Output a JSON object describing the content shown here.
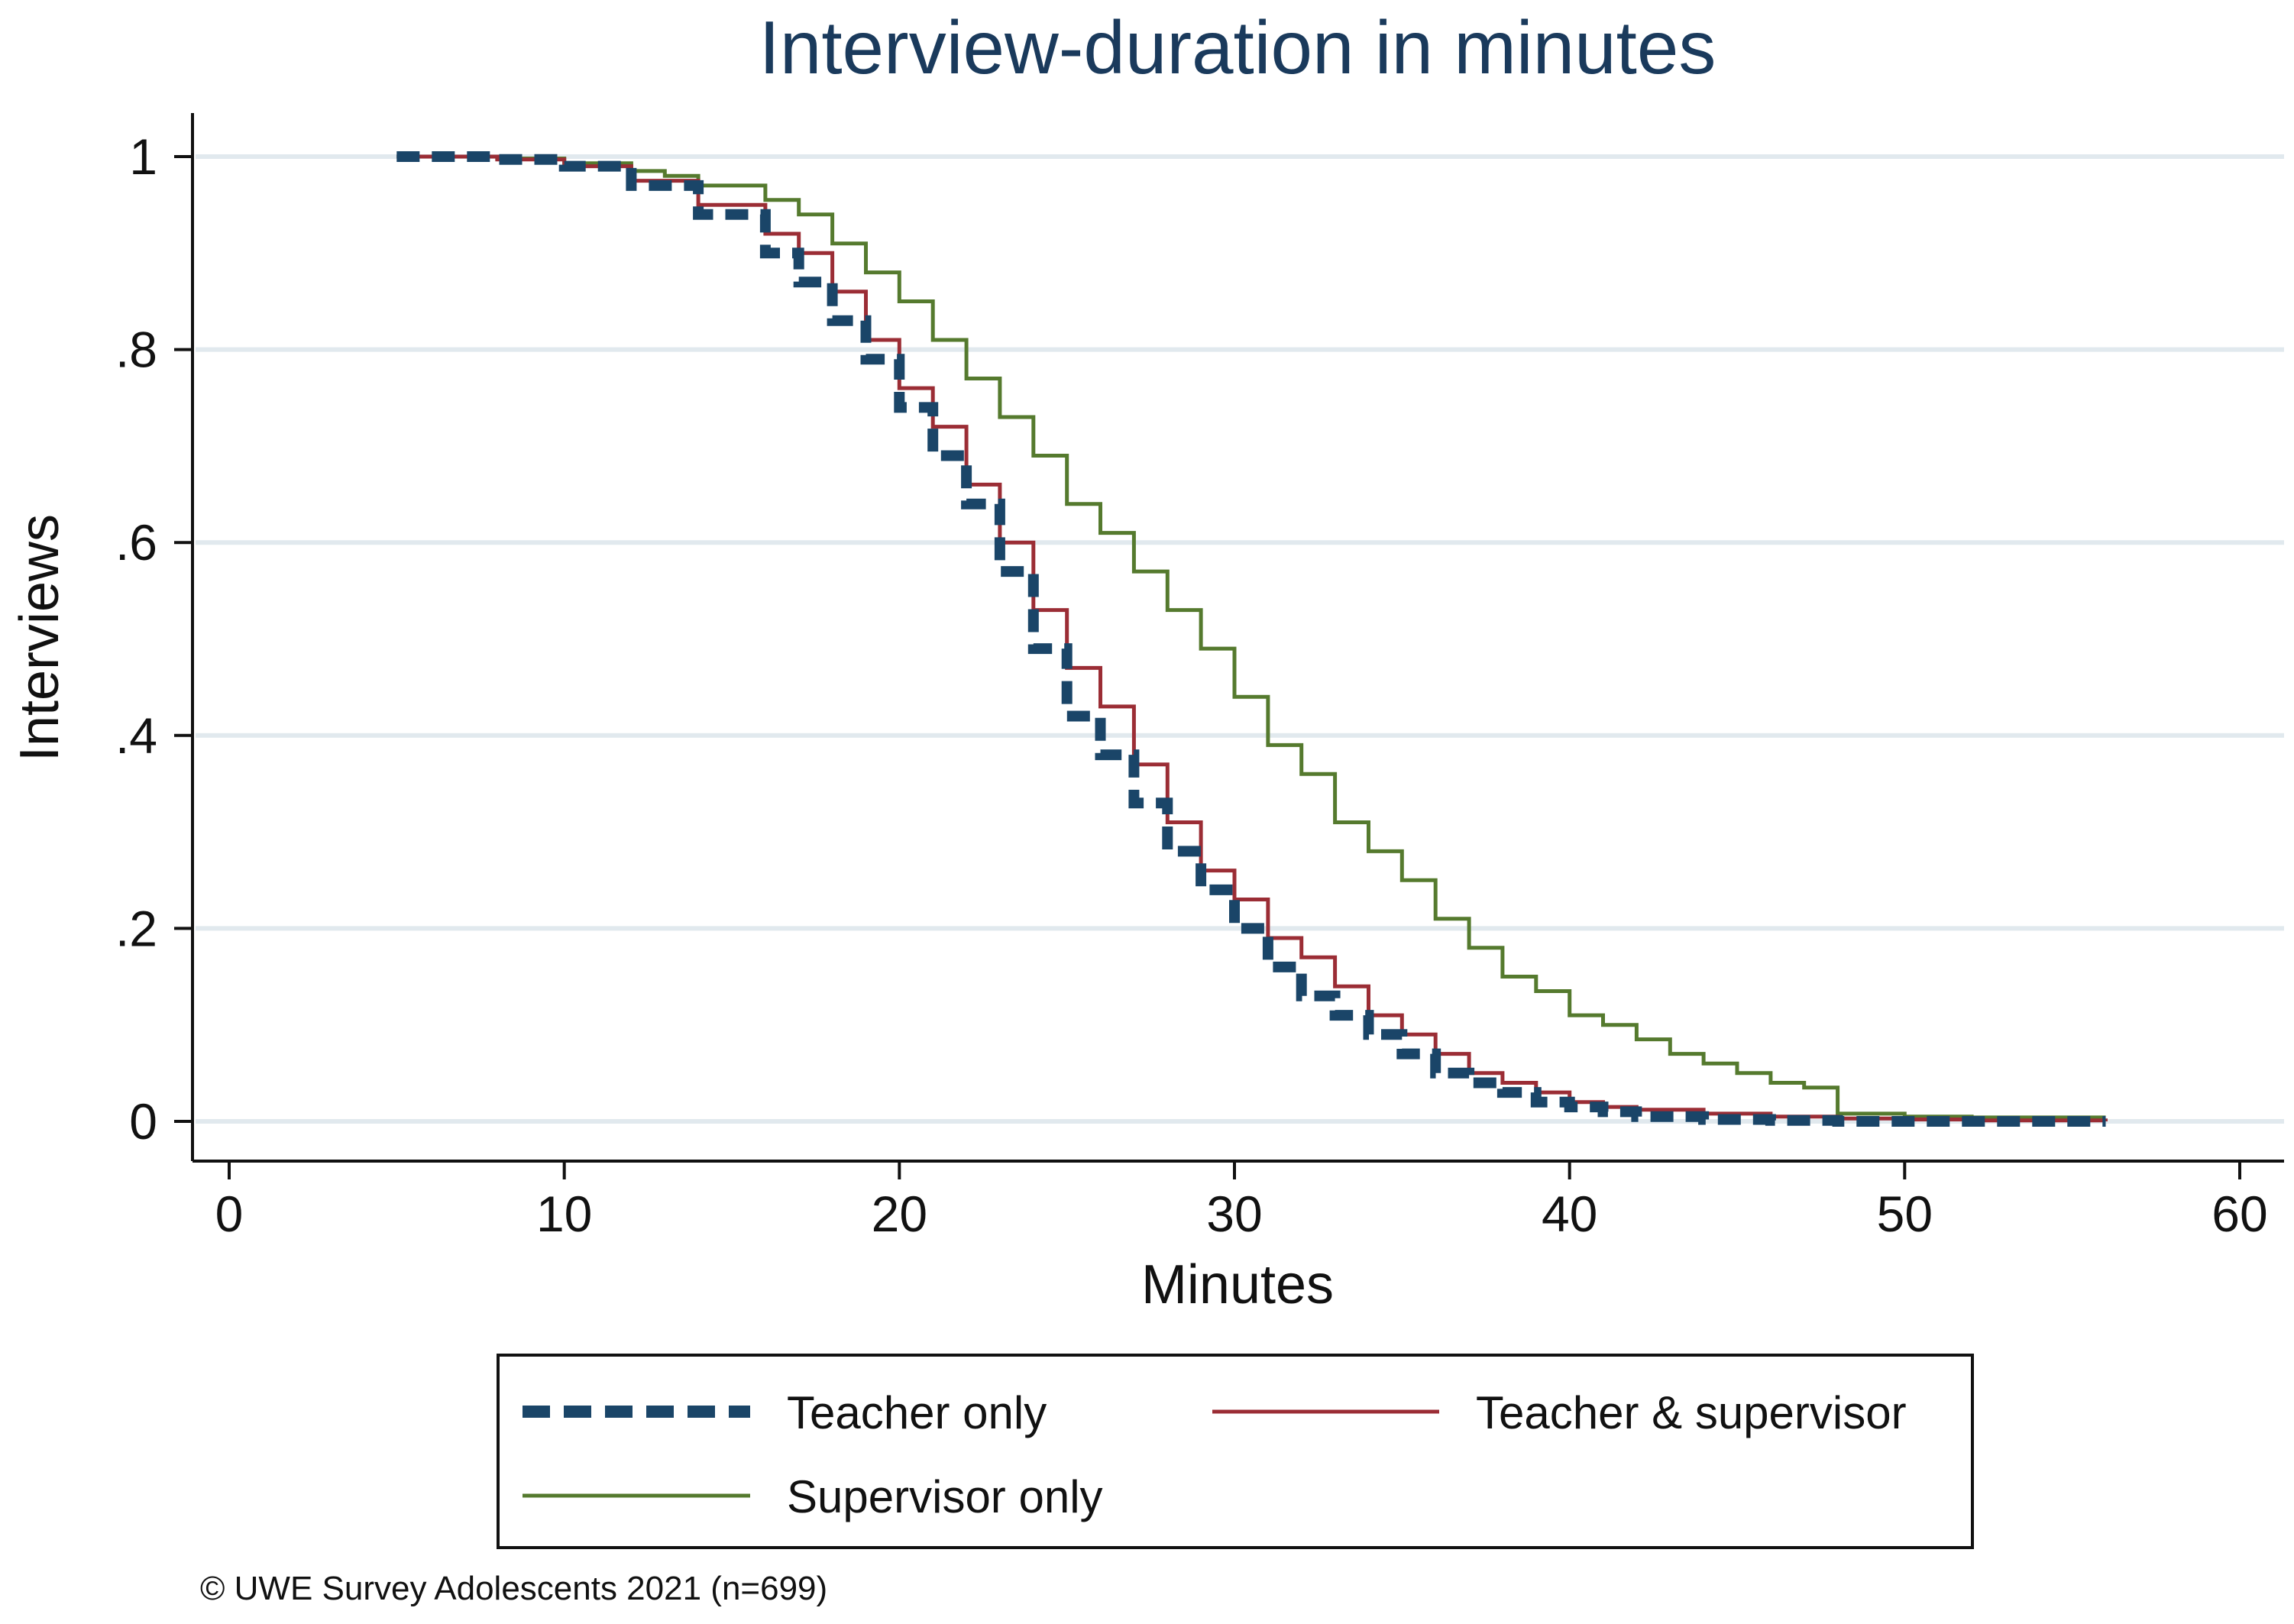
{
  "chart_data": {
    "type": "line",
    "title": "Interview-duration in minutes",
    "xlabel": "Minutes",
    "ylabel": "Interviews",
    "xlim": [
      0,
      60
    ],
    "ylim": [
      0,
      1
    ],
    "xticks": [
      0,
      10,
      20,
      30,
      40,
      50,
      60
    ],
    "xtick_labels": [
      "0",
      "10",
      "20",
      "30",
      "40",
      "50",
      "60"
    ],
    "yticks": [
      0,
      0.2,
      0.4,
      0.6,
      0.8,
      1
    ],
    "ytick_labels": [
      "0",
      ".2",
      ".4",
      ".6",
      ".8",
      "1"
    ],
    "grid": "horizontal",
    "legend_position": "bottom",
    "series": [
      {
        "name": "Teacher only",
        "color": "#1a4568",
        "style": "dashed",
        "x": [
          5,
          8,
          10,
          12,
          14,
          16,
          17,
          18,
          19,
          20,
          21,
          22,
          23,
          24,
          25,
          26,
          27,
          28,
          29,
          30,
          31,
          32,
          33,
          34,
          35,
          36,
          37,
          38,
          39,
          40,
          41,
          42,
          44,
          46,
          48,
          50,
          52,
          54,
          56
        ],
        "y": [
          1.0,
          0.997,
          0.99,
          0.97,
          0.94,
          0.9,
          0.87,
          0.83,
          0.79,
          0.74,
          0.69,
          0.64,
          0.57,
          0.49,
          0.42,
          0.38,
          0.33,
          0.28,
          0.24,
          0.2,
          0.16,
          0.13,
          0.11,
          0.09,
          0.07,
          0.05,
          0.04,
          0.03,
          0.02,
          0.015,
          0.01,
          0.005,
          0.002,
          0.001,
          0.0,
          0.0,
          0.0,
          0.0,
          0.0
        ]
      },
      {
        "name": "Teacher & supervisor",
        "color": "#9b2d35",
        "style": "solid",
        "x": [
          5,
          8,
          10,
          12,
          14,
          16,
          17,
          18,
          19,
          20,
          21,
          22,
          23,
          24,
          25,
          26,
          27,
          28,
          29,
          30,
          31,
          32,
          33,
          34,
          35,
          36,
          37,
          38,
          39,
          40,
          41,
          42,
          44,
          46,
          48,
          50,
          52,
          54,
          56
        ],
        "y": [
          1.0,
          0.997,
          0.99,
          0.975,
          0.95,
          0.92,
          0.9,
          0.86,
          0.81,
          0.76,
          0.72,
          0.66,
          0.6,
          0.53,
          0.47,
          0.43,
          0.37,
          0.31,
          0.26,
          0.23,
          0.19,
          0.17,
          0.14,
          0.11,
          0.09,
          0.07,
          0.05,
          0.04,
          0.03,
          0.02,
          0.015,
          0.012,
          0.008,
          0.005,
          0.003,
          0.002,
          0.001,
          0.001,
          0.0
        ]
      },
      {
        "name": "Supervisor only",
        "color": "#557a2e",
        "style": "solid",
        "x": [
          5,
          8,
          10,
          12,
          13,
          14,
          16,
          17,
          18,
          19,
          20,
          21,
          22,
          23,
          24,
          25,
          26,
          27,
          28,
          29,
          30,
          31,
          32,
          33,
          34,
          35,
          36,
          37,
          38,
          39,
          40,
          41,
          42,
          43,
          44,
          45,
          46,
          47,
          48,
          50,
          52,
          54,
          56
        ],
        "y": [
          1.0,
          0.998,
          0.993,
          0.985,
          0.98,
          0.97,
          0.955,
          0.94,
          0.91,
          0.88,
          0.85,
          0.81,
          0.77,
          0.73,
          0.69,
          0.64,
          0.61,
          0.57,
          0.53,
          0.49,
          0.44,
          0.39,
          0.36,
          0.31,
          0.28,
          0.25,
          0.21,
          0.18,
          0.15,
          0.135,
          0.11,
          0.1,
          0.085,
          0.07,
          0.06,
          0.05,
          0.04,
          0.035,
          0.008,
          0.005,
          0.004,
          0.004,
          0.004
        ]
      }
    ],
    "footnote": "© UWE Survey Adolescents 2021 (n=699)"
  },
  "colors": {
    "title": "#1a3a5c",
    "grid": "#e1e9ee",
    "axis": "#111111",
    "background": "#ffffff"
  }
}
